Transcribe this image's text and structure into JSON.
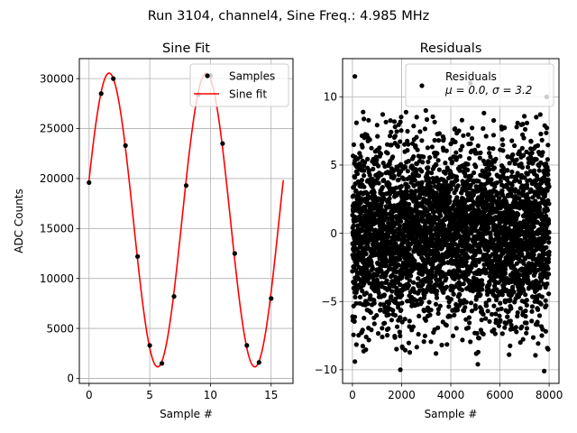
{
  "suptitle": "Run 3104, channel4, Sine Freq.: 4.985 MHz",
  "chart_data": [
    {
      "type": "scatter",
      "title": "Sine Fit",
      "xlabel": "Sample #",
      "ylabel": "ADC Counts",
      "xlim": [
        -0.8,
        16.8
      ],
      "ylim": [
        -500,
        32000
      ],
      "xticks": [
        0,
        5,
        10,
        15
      ],
      "yticks": [
        0,
        5000,
        10000,
        15000,
        20000,
        25000,
        30000
      ],
      "grid": true,
      "legend_position": "upper-right",
      "series": [
        {
          "name": "Samples",
          "kind": "scatter",
          "color": "#000000",
          "x": [
            0,
            1,
            2,
            3,
            4,
            5,
            6,
            7,
            8,
            9,
            10,
            11,
            12,
            13,
            14,
            15
          ],
          "y": [
            19600,
            28500,
            30000,
            23300,
            12200,
            3300,
            1500,
            8200,
            19300,
            28400,
            30300,
            23500,
            12500,
            3300,
            1600,
            8000
          ]
        },
        {
          "name": "Sine fit",
          "kind": "line",
          "color": "#ff0000",
          "model": {
            "offset": 15850,
            "amplitude": 14700,
            "period": 8.0,
            "peak_x": 1.65,
            "x_start": 0,
            "x_end": 16
          }
        }
      ]
    },
    {
      "type": "scatter",
      "title": "Residuals",
      "xlabel": "Sample #",
      "ylabel": "",
      "xlim": [
        -400,
        8400
      ],
      "ylim": [
        -11,
        12.8
      ],
      "xticks": [
        0,
        2000,
        4000,
        6000,
        8000
      ],
      "yticks": [
        -10,
        -5,
        0,
        5,
        10
      ],
      "grid": true,
      "legend_position": "upper-right",
      "series": [
        {
          "name": "Residuals",
          "legend_line2": "μ = 0.0, σ = 3.2",
          "kind": "scatter",
          "color": "#000000",
          "n_points": 8000,
          "mean": 0.0,
          "std": 3.2,
          "x_range": [
            0,
            8000
          ],
          "outliers": [
            {
              "x": 100,
              "y": 11.5
            },
            {
              "x": 4800,
              "y": 11.0
            },
            {
              "x": 7900,
              "y": 10.0
            },
            {
              "x": 1950,
              "y": -10.0
            },
            {
              "x": 5100,
              "y": -9.6
            },
            {
              "x": 7800,
              "y": -10.1
            },
            {
              "x": 100,
              "y": -9.4
            }
          ]
        }
      ]
    }
  ]
}
